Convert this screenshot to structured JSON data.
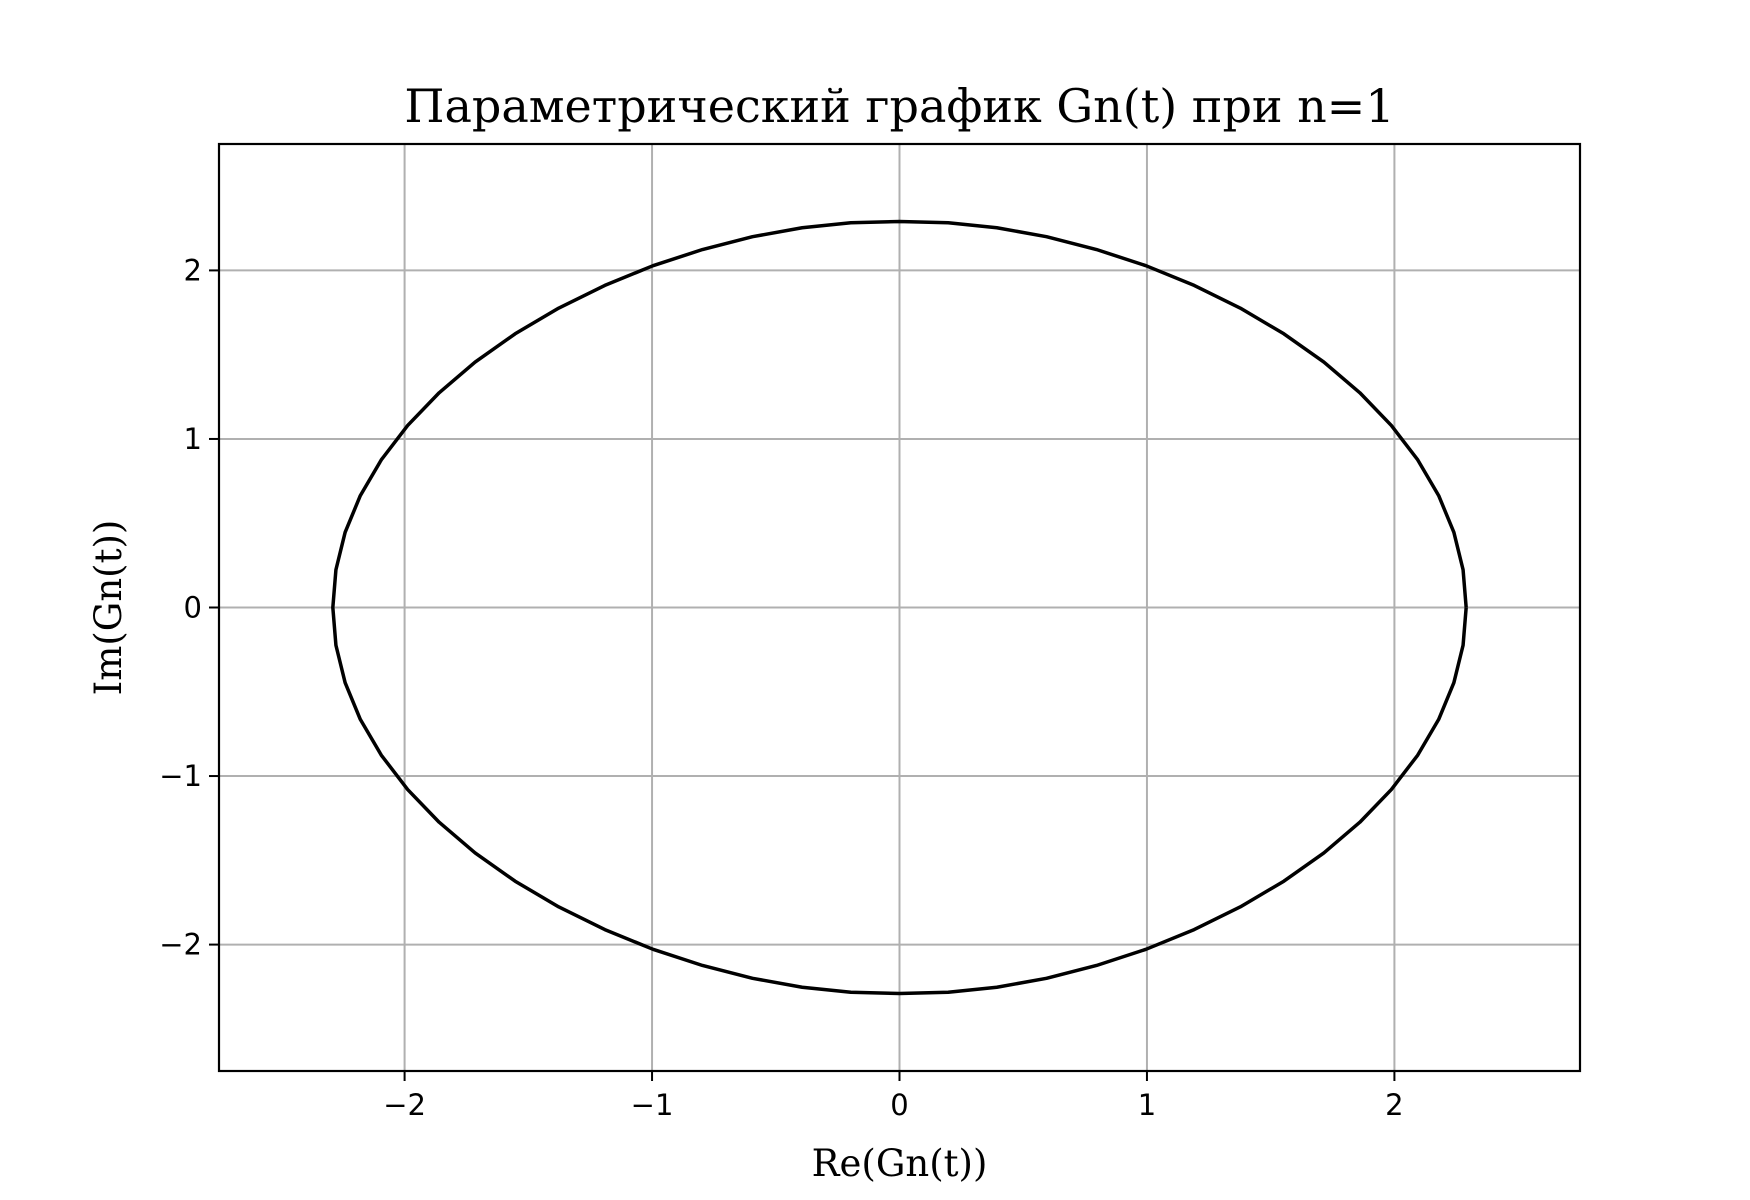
{
  "chart_data": {
    "type": "line",
    "title": "Параметрический график Gn(t) при n=1",
    "xlabel": "Re(Gn(t))",
    "ylabel": "Im(Gn(t))",
    "xlim": [
      -2.75,
      2.75
    ],
    "ylim": [
      -2.75,
      2.75
    ],
    "xticks": [
      -2,
      -1,
      0,
      1,
      2
    ],
    "yticks": [
      -2,
      -1,
      0,
      1,
      2
    ],
    "xtick_labels": [
      "−2",
      "−1",
      "0",
      "1",
      "2"
    ],
    "ytick_labels": [
      "−2",
      "−1",
      "0",
      "1",
      "2"
    ],
    "grid": true,
    "series": [
      {
        "color": "#000000",
        "x": [
          2.29,
          2.2775,
          2.2403,
          2.1789,
          2.0942,
          1.9875,
          1.8604,
          1.7149,
          1.5531,
          1.3775,
          1.1908,
          0.9959,
          0.796,
          0.5941,
          0.3934,
          0.1969,
          0.0,
          -0.1969,
          -0.3934,
          -0.5941,
          -0.796,
          -0.9959,
          -1.1908,
          -1.3775,
          -1.5531,
          -1.7149,
          -1.8604,
          -1.9875,
          -2.0942,
          -2.1789,
          -2.2403,
          -2.2775,
          -2.29,
          -2.2775,
          -2.2403,
          -2.1789,
          -2.0942,
          -1.9875,
          -1.8604,
          -1.7149,
          -1.5531,
          -1.3775,
          -1.1908,
          -0.9959,
          -0.796,
          -0.5941,
          -0.3934,
          -0.1969,
          0.0,
          0.1969,
          0.3934,
          0.5941,
          0.796,
          0.9959,
          1.1908,
          1.3775,
          1.5531,
          1.7149,
          1.8604,
          1.9875,
          2.0942,
          2.1789,
          2.2403,
          2.2775,
          2.29
        ],
        "y": [
          0.0,
          0.224,
          0.446,
          0.664,
          0.876,
          1.08,
          1.274,
          1.456,
          1.624,
          1.776,
          1.911,
          2.028,
          2.124,
          2.2,
          2.253,
          2.283,
          2.29,
          2.283,
          2.253,
          2.2,
          2.124,
          2.028,
          1.911,
          1.776,
          1.624,
          1.456,
          1.274,
          1.08,
          0.876,
          0.664,
          0.446,
          0.224,
          0.0,
          -0.224,
          -0.446,
          -0.664,
          -0.876,
          -1.08,
          -1.274,
          -1.456,
          -1.624,
          -1.776,
          -1.911,
          -2.028,
          -2.124,
          -2.2,
          -2.253,
          -2.283,
          -2.29,
          -2.283,
          -2.253,
          -2.2,
          -2.124,
          -2.028,
          -1.911,
          -1.776,
          -1.624,
          -1.456,
          -1.274,
          -1.08,
          -0.876,
          -0.664,
          -0.446,
          -0.224,
          0.0
        ]
      }
    ]
  }
}
